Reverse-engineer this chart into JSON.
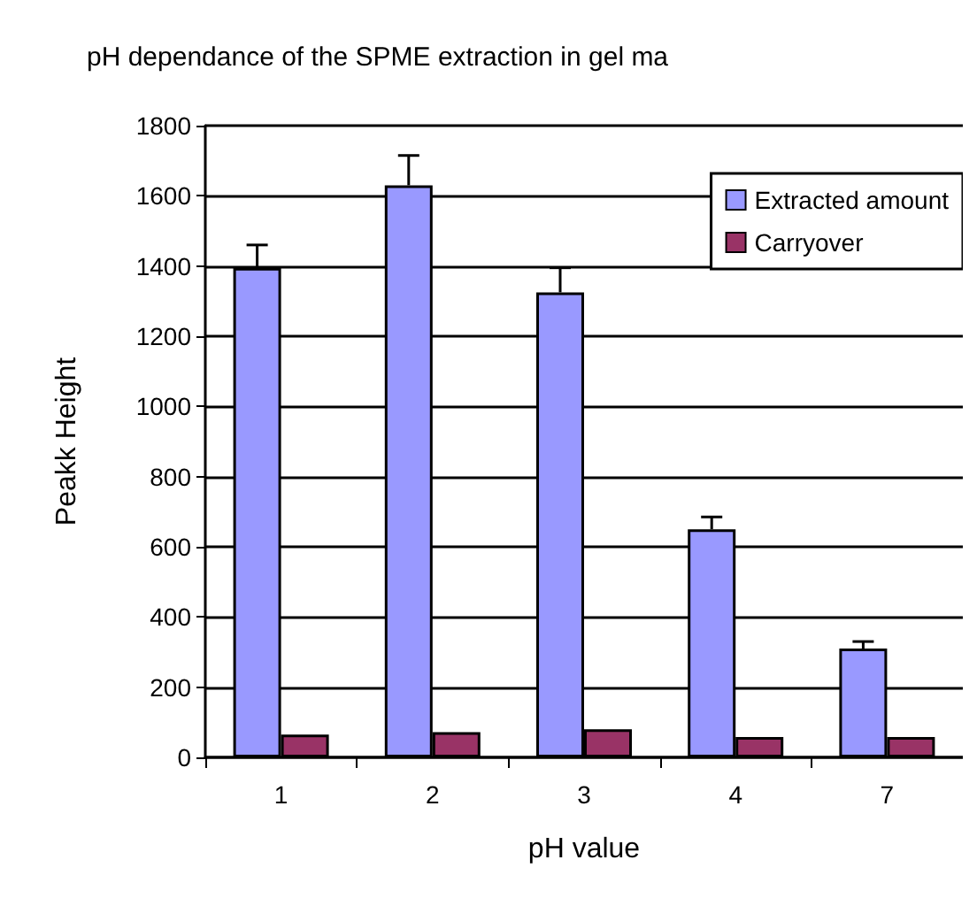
{
  "chart_data": {
    "type": "bar",
    "title": "pH dependance of the SPME extraction in gel ma",
    "xlabel": "pH value",
    "ylabel": "Peakk Height",
    "categories": [
      "1",
      "2",
      "3",
      "4",
      "7"
    ],
    "series": [
      {
        "name": "Extracted amount",
        "color": "#9999ff",
        "values": [
          1395,
          1630,
          1325,
          650,
          310
        ],
        "errors": [
          [
            1395,
            1460
          ],
          [
            1630,
            1715
          ],
          [
            1325,
            1395
          ],
          [
            650,
            685
          ],
          [
            310,
            330
          ]
        ]
      },
      {
        "name": "Carryover",
        "color": "#993366",
        "values": [
          65,
          72,
          80,
          58,
          58
        ]
      }
    ],
    "ylim": [
      0,
      1800
    ],
    "yticks": [
      0,
      200,
      400,
      600,
      800,
      1000,
      1200,
      1400,
      1600,
      1800
    ],
    "grid": "y",
    "legend": "top right"
  }
}
